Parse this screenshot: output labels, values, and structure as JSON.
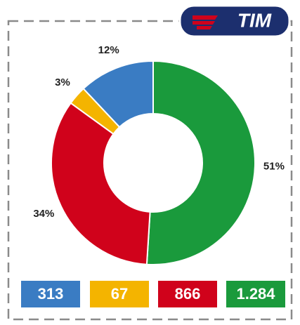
{
  "brand": "TIM",
  "chart_data": {
    "type": "donut",
    "values": [
      51,
      34,
      3,
      12
    ],
    "value_labels": [
      "51%",
      "34%",
      "3%",
      "12%"
    ],
    "counts": [
      1284,
      866,
      67,
      313
    ],
    "count_labels": [
      "1.284",
      "866",
      "67",
      "313"
    ],
    "colors": [
      "#1a9a3c",
      "#d0021b",
      "#f4b400",
      "#3a7cc3"
    ]
  }
}
